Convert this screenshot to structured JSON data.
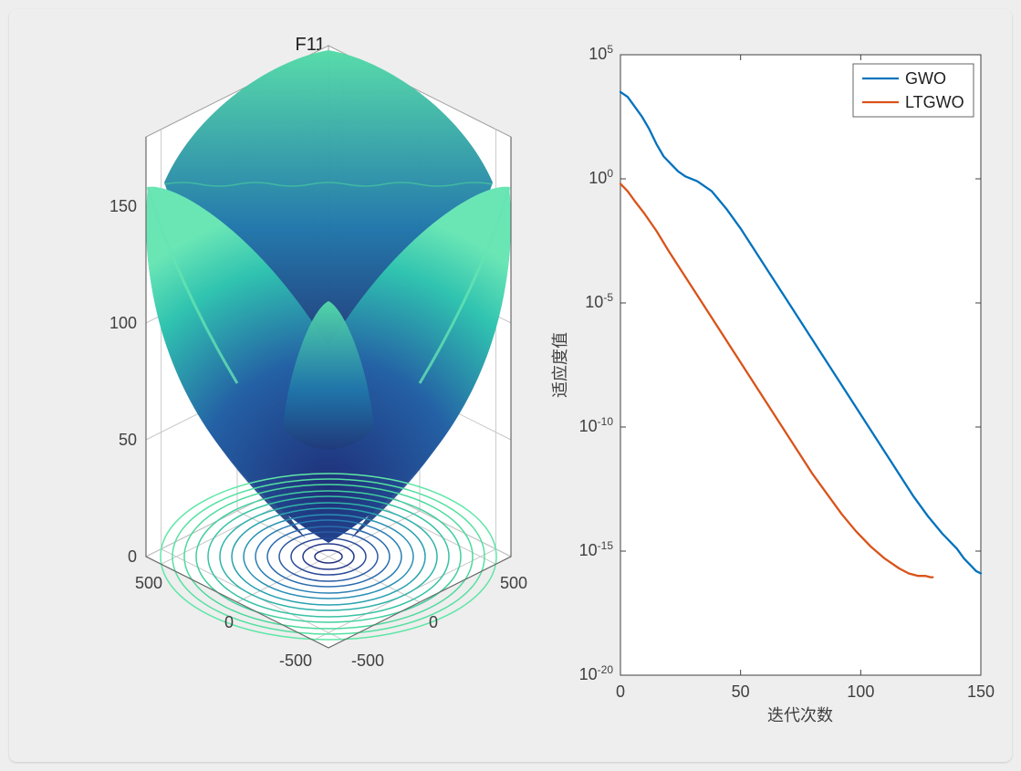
{
  "figure": {
    "background_color": "#eeeeee",
    "panel_bg": "#ffffff"
  },
  "surface_plot": {
    "type": "3d-surface-with-contour",
    "title": "F11",
    "title_fontsize": 20,
    "x_range": [
      -600,
      600
    ],
    "y_range": [
      -600,
      600
    ],
    "z_range": [
      0,
      180
    ],
    "x_ticks": [
      -500,
      0,
      500
    ],
    "y_ticks": [
      -500,
      0,
      500
    ],
    "z_ticks": [
      0,
      50,
      100,
      150
    ],
    "x_tick_labels": [
      "-500",
      "0",
      "500"
    ],
    "y_tick_labels": [
      "-500",
      "0",
      "500"
    ],
    "z_tick_labels": [
      "0",
      "50",
      "100",
      "150"
    ],
    "colormap": {
      "low": "#2a3b8f",
      "mid": "#2f7fb8",
      "high": "#4de0a6",
      "peak": "#7fe9c0"
    },
    "contour_levels": 14,
    "contour_colors_outer": "#49d6a0",
    "contour_colors_inner": "#2a3b8f",
    "grid_color": "#bfbfbf",
    "axis_color": "#404040",
    "wall_color": "#ffffff",
    "tick_fontsize": 18
  },
  "convergence_plot": {
    "type": "line-semilogy",
    "xlabel": "迭代次数",
    "ylabel": "适应度值",
    "label_fontsize": 19,
    "tick_fontsize": 18,
    "xlim": [
      0,
      150
    ],
    "ylim_exp": [
      -20,
      5
    ],
    "x_ticks": [
      0,
      50,
      100,
      150
    ],
    "y_tick_exponents": [
      -20,
      -15,
      -10,
      -5,
      0,
      5
    ],
    "grid_color": "none",
    "axis_color": "#404040",
    "background_color": "#ffffff",
    "line_width": 2.3,
    "legend": {
      "position": "top-right",
      "entries": [
        {
          "label": "GWO",
          "color": "#0072bd"
        },
        {
          "label": "LTGWO",
          "color": "#d95319"
        }
      ],
      "fontsize": 18,
      "box_border": "#666666"
    },
    "series": [
      {
        "name": "GWO",
        "color": "#0072bd",
        "x": [
          0,
          3,
          6,
          9,
          12,
          15,
          18,
          21,
          24,
          27,
          32,
          38,
          44,
          50,
          56,
          62,
          68,
          74,
          80,
          86,
          92,
          98,
          104,
          110,
          116,
          122,
          128,
          134,
          140,
          143,
          146,
          148,
          150
        ],
        "y_exp": [
          3.5,
          3.3,
          2.9,
          2.5,
          2.0,
          1.4,
          0.9,
          0.6,
          0.3,
          0.1,
          -0.1,
          -0.5,
          -1.2,
          -2.0,
          -2.9,
          -3.8,
          -4.7,
          -5.6,
          -6.5,
          -7.4,
          -8.3,
          -9.2,
          -10.1,
          -11.0,
          -11.9,
          -12.8,
          -13.6,
          -14.3,
          -14.9,
          -15.3,
          -15.6,
          -15.8,
          -15.9
        ]
      },
      {
        "name": "LTGWO",
        "color": "#d95319",
        "x": [
          0,
          3,
          6,
          10,
          15,
          20,
          26,
          32,
          38,
          44,
          50,
          56,
          62,
          68,
          74,
          80,
          86,
          92,
          98,
          104,
          110,
          116,
          120,
          124,
          127,
          129,
          130
        ],
        "y_exp": [
          -0.2,
          -0.5,
          -0.9,
          -1.4,
          -2.1,
          -2.9,
          -3.8,
          -4.7,
          -5.6,
          -6.5,
          -7.4,
          -8.3,
          -9.2,
          -10.1,
          -11.0,
          -11.9,
          -12.7,
          -13.5,
          -14.2,
          -14.8,
          -15.3,
          -15.7,
          -15.9,
          -16.0,
          -16.0,
          -16.05,
          -16.05
        ]
      }
    ]
  }
}
